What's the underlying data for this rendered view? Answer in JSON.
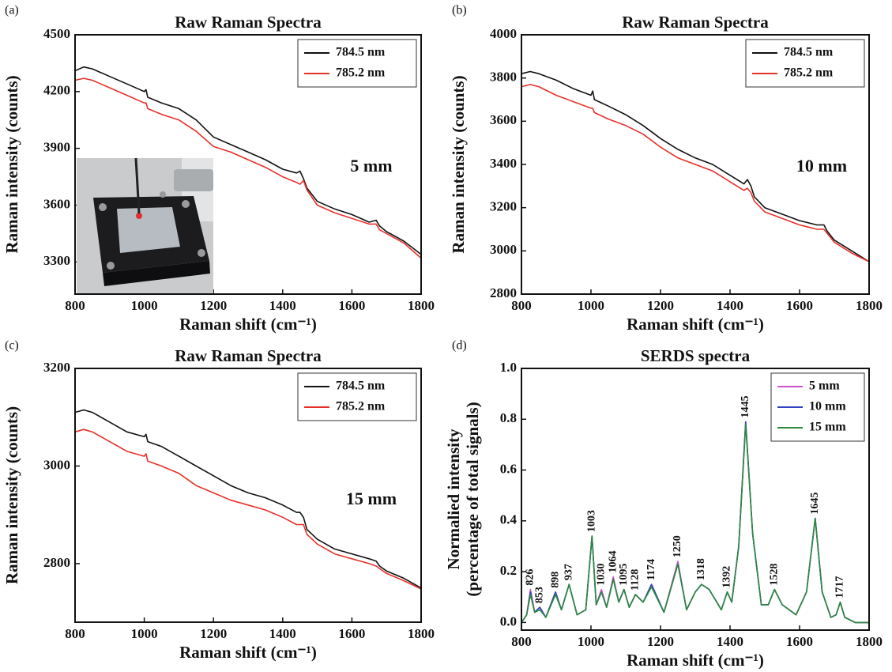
{
  "chart_data": [
    {
      "type": "line",
      "panel_label": "(a)",
      "title": "Raw Raman Spectra",
      "xlabel": "Raman shift (cm⁻¹)",
      "ylabel": "Raman intensity (counts)",
      "annotation": "5 mm",
      "legend": "upper right",
      "xlim": [
        800,
        1800
      ],
      "xticks": [
        800,
        1000,
        1200,
        1400,
        1600,
        1800
      ],
      "ylim": [
        3130,
        4500
      ],
      "yticks": [
        3300,
        3600,
        3900,
        4200,
        4500
      ],
      "x": [
        800,
        825,
        850,
        900,
        950,
        1000,
        1005,
        1010,
        1050,
        1100,
        1150,
        1200,
        1250,
        1300,
        1350,
        1400,
        1440,
        1450,
        1460,
        1470,
        1500,
        1550,
        1600,
        1650,
        1670,
        1680,
        1700,
        1750,
        1800
      ],
      "series": [
        {
          "name": "784.5 nm",
          "color": "#111111",
          "values": [
            4310,
            4330,
            4320,
            4280,
            4240,
            4200,
            4210,
            4170,
            4140,
            4110,
            4050,
            3960,
            3920,
            3880,
            3840,
            3790,
            3770,
            3780,
            3740,
            3690,
            3620,
            3580,
            3550,
            3510,
            3520,
            3490,
            3460,
            3410,
            3340
          ]
        },
        {
          "name": "785.2 nm",
          "color": "#e8302a",
          "values": [
            4260,
            4270,
            4260,
            4220,
            4180,
            4140,
            4140,
            4110,
            4080,
            4050,
            3990,
            3910,
            3880,
            3840,
            3800,
            3750,
            3720,
            3710,
            3730,
            3680,
            3600,
            3560,
            3530,
            3500,
            3500,
            3470,
            3450,
            3400,
            3320
          ]
        }
      ]
    },
    {
      "type": "line",
      "panel_label": "(b)",
      "title": "Raw Raman Spectra",
      "xlabel": "Raman shift (cm⁻¹)",
      "ylabel": "Raman intensity (counts)",
      "annotation": "10 mm",
      "legend": "upper right",
      "xlim": [
        800,
        1800
      ],
      "xticks": [
        800,
        1000,
        1200,
        1400,
        1600,
        1800
      ],
      "ylim": [
        2800,
        4000
      ],
      "yticks": [
        2800,
        3000,
        3200,
        3400,
        3600,
        3800,
        4000
      ],
      "x": [
        800,
        825,
        850,
        900,
        950,
        1000,
        1005,
        1010,
        1050,
        1100,
        1150,
        1200,
        1250,
        1300,
        1350,
        1400,
        1440,
        1450,
        1460,
        1470,
        1500,
        1550,
        1600,
        1650,
        1670,
        1680,
        1700,
        1750,
        1800
      ],
      "series": [
        {
          "name": "784.5 nm",
          "color": "#111111",
          "values": [
            3820,
            3830,
            3820,
            3790,
            3750,
            3720,
            3740,
            3700,
            3670,
            3630,
            3580,
            3520,
            3470,
            3430,
            3400,
            3350,
            3310,
            3330,
            3300,
            3250,
            3200,
            3170,
            3140,
            3120,
            3120,
            3090,
            3050,
            3000,
            2950
          ]
        },
        {
          "name": "785.2 nm",
          "color": "#e8302a",
          "values": [
            3760,
            3770,
            3760,
            3720,
            3690,
            3660,
            3660,
            3640,
            3610,
            3580,
            3540,
            3480,
            3430,
            3400,
            3370,
            3320,
            3280,
            3290,
            3270,
            3230,
            3180,
            3150,
            3120,
            3100,
            3100,
            3080,
            3040,
            2990,
            2950
          ]
        }
      ]
    },
    {
      "type": "line",
      "panel_label": "(c)",
      "title": "Raw Raman Spectra",
      "xlabel": "Raman shift (cm⁻¹)",
      "ylabel": "Raman intensity (counts)",
      "annotation": "15 mm",
      "legend": "upper right",
      "xlim": [
        800,
        1800
      ],
      "xticks": [
        800,
        1000,
        1200,
        1400,
        1600,
        1800
      ],
      "ylim": [
        2680,
        3200
      ],
      "yticks": [
        2800,
        3000,
        3200
      ],
      "x": [
        800,
        825,
        850,
        900,
        950,
        1000,
        1005,
        1010,
        1050,
        1100,
        1150,
        1200,
        1250,
        1300,
        1350,
        1400,
        1440,
        1450,
        1460,
        1470,
        1500,
        1550,
        1600,
        1650,
        1670,
        1680,
        1700,
        1750,
        1800
      ],
      "series": [
        {
          "name": "784.5 nm",
          "color": "#111111",
          "values": [
            3110,
            3115,
            3110,
            3090,
            3070,
            3060,
            3065,
            3050,
            3040,
            3020,
            3000,
            2980,
            2960,
            2945,
            2935,
            2920,
            2905,
            2905,
            2895,
            2870,
            2850,
            2830,
            2820,
            2810,
            2805,
            2795,
            2785,
            2770,
            2750
          ]
        },
        {
          "name": "785.2 nm",
          "color": "#e8302a",
          "values": [
            3070,
            3075,
            3070,
            3050,
            3030,
            3020,
            3025,
            3010,
            3000,
            2985,
            2960,
            2945,
            2930,
            2920,
            2910,
            2895,
            2880,
            2880,
            2880,
            2860,
            2840,
            2820,
            2810,
            2800,
            2795,
            2790,
            2780,
            2765,
            2748
          ]
        }
      ]
    },
    {
      "type": "line",
      "panel_label": "(d)",
      "title": "SERDS spectra",
      "xlabel": "Raman shift (cm⁻¹)",
      "ylabel": [
        "Normalied intensity",
        "(percentage of total signals)"
      ],
      "legend": "upper right",
      "xlim": [
        800,
        1800
      ],
      "xticks": [
        800,
        1000,
        1200,
        1400,
        1600,
        1800
      ],
      "ylim": [
        -0.03,
        1.0
      ],
      "yticks": [
        {
          "value": 0,
          "label": "0.0"
        },
        0.2,
        0.4,
        0.6,
        0.8,
        {
          "value": 1,
          "label": "1.0"
        }
      ],
      "peaks": [
        826,
        853,
        898,
        937,
        1003,
        1030,
        1064,
        1095,
        1128,
        1174,
        1250,
        1318,
        1392,
        1445,
        1528,
        1645,
        1717
      ],
      "x": [
        800,
        815,
        826,
        838,
        853,
        870,
        898,
        915,
        937,
        960,
        985,
        1003,
        1015,
        1030,
        1045,
        1064,
        1080,
        1095,
        1110,
        1128,
        1150,
        1174,
        1210,
        1250,
        1275,
        1300,
        1318,
        1340,
        1375,
        1392,
        1405,
        1425,
        1445,
        1465,
        1490,
        1510,
        1528,
        1550,
        1590,
        1620,
        1645,
        1665,
        1690,
        1705,
        1717,
        1730,
        1760,
        1800
      ],
      "series": [
        {
          "name": "5 mm",
          "color": "#d050d0",
          "values": [
            0.0,
            0.03,
            0.13,
            0.04,
            0.06,
            0.02,
            0.12,
            0.05,
            0.15,
            0.03,
            0.05,
            0.34,
            0.07,
            0.13,
            0.06,
            0.18,
            0.08,
            0.13,
            0.06,
            0.11,
            0.08,
            0.15,
            0.04,
            0.24,
            0.05,
            0.12,
            0.15,
            0.13,
            0.05,
            0.12,
            0.08,
            0.3,
            0.79,
            0.35,
            0.07,
            0.07,
            0.13,
            0.07,
            0.03,
            0.12,
            0.41,
            0.12,
            0.02,
            0.03,
            0.08,
            0.02,
            0.0,
            0.0
          ]
        },
        {
          "name": "10 mm",
          "color": "#3040c0",
          "values": [
            0.0,
            0.03,
            0.12,
            0.04,
            0.06,
            0.02,
            0.12,
            0.05,
            0.15,
            0.03,
            0.05,
            0.34,
            0.07,
            0.12,
            0.06,
            0.17,
            0.08,
            0.13,
            0.06,
            0.11,
            0.08,
            0.15,
            0.04,
            0.23,
            0.05,
            0.12,
            0.15,
            0.13,
            0.05,
            0.12,
            0.08,
            0.3,
            0.79,
            0.35,
            0.07,
            0.07,
            0.13,
            0.07,
            0.03,
            0.12,
            0.41,
            0.12,
            0.02,
            0.03,
            0.08,
            0.02,
            0.0,
            0.0
          ]
        },
        {
          "name": "15 mm",
          "color": "#2a8a3a",
          "values": [
            0.0,
            0.03,
            0.11,
            0.04,
            0.05,
            0.02,
            0.11,
            0.05,
            0.15,
            0.03,
            0.05,
            0.34,
            0.07,
            0.12,
            0.06,
            0.17,
            0.08,
            0.13,
            0.06,
            0.11,
            0.08,
            0.14,
            0.04,
            0.23,
            0.05,
            0.12,
            0.15,
            0.13,
            0.05,
            0.12,
            0.08,
            0.3,
            0.78,
            0.35,
            0.07,
            0.07,
            0.13,
            0.07,
            0.03,
            0.12,
            0.41,
            0.12,
            0.02,
            0.03,
            0.08,
            0.02,
            0.0,
            0.0
          ]
        }
      ]
    }
  ]
}
